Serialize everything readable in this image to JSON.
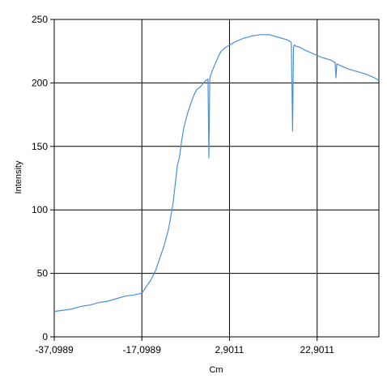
{
  "chart_data": {
    "type": "line",
    "title": "",
    "xlabel": "Cm",
    "ylabel": "Intensity",
    "xlim": [
      -37.0989,
      37.0
    ],
    "ylim": [
      0,
      250
    ],
    "x_ticks": [
      "-37,0989",
      "-17,0989",
      "2,9011",
      "22,9011"
    ],
    "x_tick_values": [
      -37.0989,
      -17.0989,
      2.9011,
      22.9011
    ],
    "y_ticks": [
      "0",
      "50",
      "100",
      "150",
      "200",
      "250"
    ],
    "y_tick_values": [
      0,
      50,
      100,
      150,
      200,
      250
    ],
    "grid": true,
    "legend": "none",
    "series": [
      {
        "color": "#4a90d9",
        "x": [
          -37.1,
          -35.0,
          -33.0,
          -31.0,
          -29.0,
          -27.0,
          -25.0,
          -23.0,
          -21.0,
          -19.0,
          -17.5,
          -17.0,
          -16.0,
          -15.0,
          -14.0,
          -13.0,
          -12.0,
          -11.0,
          -10.0,
          -9.5,
          -9.0,
          -8.5,
          -8.0,
          -7.5,
          -7.0,
          -6.5,
          -6.0,
          -5.5,
          -5.0,
          -4.5,
          -4.0,
          -3.5,
          -3.0,
          -2.5,
          -2.0,
          -1.8,
          -1.6,
          -1.5,
          -1.0,
          -0.5,
          0.0,
          0.5,
          1.0,
          2.0,
          3.0,
          4.0,
          6.0,
          8.0,
          10.0,
          12.0,
          14.0,
          15.0,
          16.0,
          17.0,
          17.3,
          17.5,
          17.7,
          18.0,
          19.0,
          20.0,
          22.0,
          24.0,
          26.0,
          27.0,
          27.2,
          27.4,
          28.0,
          30.0,
          32.0,
          34.0,
          36.0,
          37.0
        ],
        "y": [
          20,
          21,
          22,
          24,
          25,
          27,
          28,
          30,
          32,
          33,
          34,
          35,
          40,
          45,
          52,
          62,
          72,
          85,
          105,
          120,
          135,
          142,
          155,
          165,
          172,
          178,
          183,
          188,
          192,
          195,
          196,
          198,
          200,
          202,
          203,
          141,
          203,
          205,
          210,
          214,
          218,
          222,
          225,
          228,
          230,
          232,
          235,
          237,
          238,
          238,
          236,
          235,
          234,
          232,
          162,
          228,
          230,
          229,
          228,
          226,
          223,
          220,
          218,
          216,
          204,
          215,
          214,
          211,
          209,
          207,
          204,
          202
        ]
      }
    ]
  }
}
